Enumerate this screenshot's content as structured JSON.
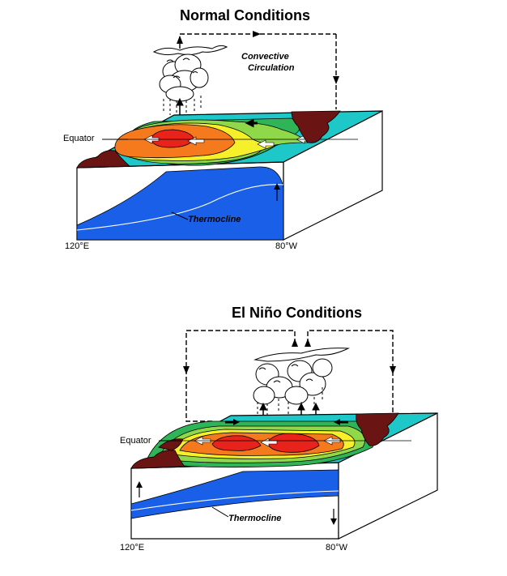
{
  "normal": {
    "title": "Normal Conditions",
    "circulation_label_line1": "Convective",
    "circulation_label_line2": "Circulation",
    "equator_label": "Equator",
    "thermocline_label": "Thermocline",
    "west_longitude": "120°E",
    "east_longitude": "80°W"
  },
  "elnino": {
    "title": "El Niño Conditions",
    "equator_label": "Equator",
    "thermocline_label": "Thermocline",
    "west_longitude": "120°E",
    "east_longitude": "80°W"
  },
  "colors": {
    "warm_core": "#e8231c",
    "warm": "#f57a1e",
    "mid_warm": "#f7c81e",
    "neutral": "#f5f02a",
    "cool": "#8ed84a",
    "cooler": "#2fb457",
    "cold": "#32c8d8",
    "ocean_layer": "#1a5fe8",
    "land": "#6b1414"
  }
}
